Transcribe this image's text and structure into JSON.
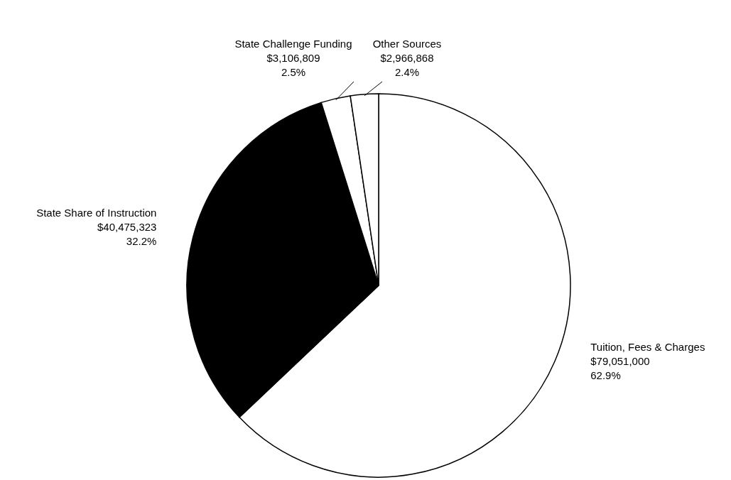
{
  "chart_data": {
    "type": "pie",
    "categories": [
      "Tuition, Fees & Charges",
      "State Share of Instruction",
      "State Challenge Funding",
      "Other Sources"
    ],
    "values": [
      79051000,
      40475323,
      3106809,
      2966868
    ],
    "value_labels": [
      "$79,051,000\n62.9%",
      "$40,475,323\n32.2%",
      "$3,106,809\n2.5%",
      "$2,966,868\n2.4%"
    ],
    "colors": [
      "#ffffff",
      "#000000",
      "#ffffff",
      "#ffffff"
    ]
  }
}
